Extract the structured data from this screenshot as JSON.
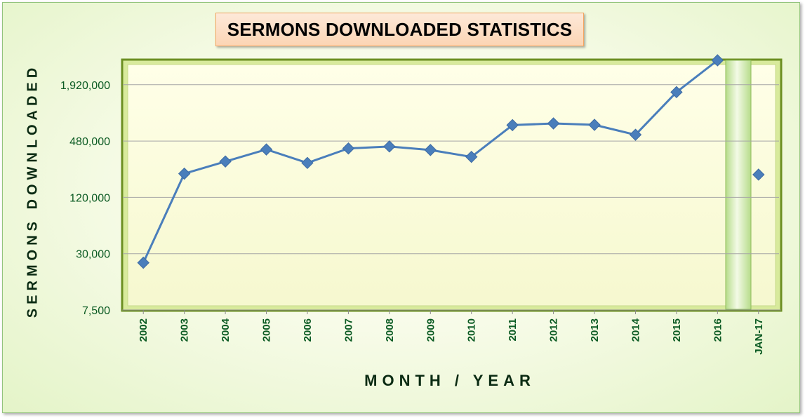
{
  "chart_data": {
    "type": "line",
    "title": "SERMONS DOWNLOADED STATISTICS",
    "xlabel": "MONTH / YEAR",
    "ylabel": "SERMONS DOWNLOADED",
    "y_scale": "log",
    "ylim": [
      7500,
      3500000
    ],
    "y_ticks": [
      {
        "value": 7500,
        "label": "7,500"
      },
      {
        "value": 30000,
        "label": "30,000"
      },
      {
        "value": 120000,
        "label": "120,000"
      },
      {
        "value": 480000,
        "label": "480,000"
      },
      {
        "value": 1920000,
        "label": "1,920,000"
      }
    ],
    "categories": [
      "2002",
      "2003",
      "2004",
      "2005",
      "2006",
      "2007",
      "2008",
      "2009",
      "2010",
      "2011",
      "2012",
      "2013",
      "2014",
      "2015",
      "2016",
      "JAN-17"
    ],
    "series": [
      {
        "values": [
          24000,
          215000,
          290000,
          390000,
          280000,
          400000,
          420000,
          385000,
          325000,
          710000,
          740000,
          715000,
          560000,
          1600000,
          3500000,
          null
        ],
        "color": "#4a7ebb"
      },
      {
        "values": [
          null,
          null,
          null,
          null,
          null,
          null,
          null,
          null,
          null,
          null,
          null,
          null,
          null,
          null,
          null,
          210000
        ],
        "color": "#4a7ebb"
      }
    ],
    "grid": true,
    "legend": "none"
  }
}
